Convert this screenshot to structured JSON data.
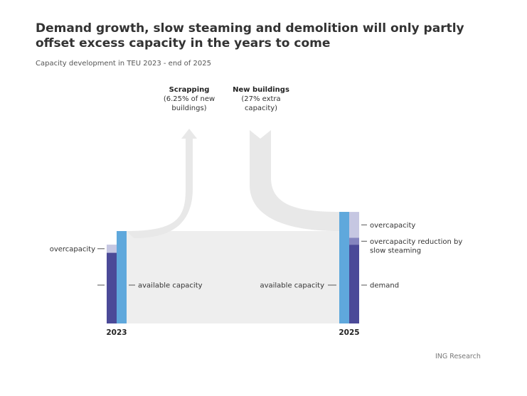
{
  "title": "Demand growth, slow steaming and demolition will only partly offset excess capacity in the years to come",
  "subtitle": "Capacity development in TEU 2023 - end of 2025",
  "source": "ING Research",
  "colors": {
    "demand": "#4b4a98",
    "overcapacity": "#c6c7e2",
    "slow_steaming": "#8585bf",
    "available_capacity": "#5fa8dc",
    "flow": "#eeeeee",
    "arrow": "#e8e8e8"
  },
  "chart_data": {
    "type": "sankey",
    "title": "Demand growth, slow steaming and demolition will only partly offset excess capacity in the years to come",
    "subtitle": "Capacity development in TEU 2023 - end of 2025",
    "columns": [
      "2023",
      "2025"
    ],
    "index_base": "available capacity 2023 = 100",
    "y_scale": [
      0,
      100
    ],
    "bars": {
      "2023": {
        "available_capacity": 100,
        "demand": 76.5,
        "overcapacity": 8.8
      },
      "2025": {
        "available_capacity": 120.75,
        "demand": 85.3,
        "overcapacity_reduction_by_slow_steaming": 7.4,
        "overcapacity": 28.0
      }
    },
    "flows": {
      "new_buildings": 27,
      "scrapping": 6.25
    },
    "flow_labels": {
      "scrapping": [
        "Scrapping",
        "(6.25% of new",
        "buildings)"
      ],
      "new_buildings": [
        "New buildings",
        "(27% extra",
        "capacity)"
      ]
    },
    "labels": {
      "year_2023": "2023",
      "year_2025": "2025",
      "overcapacity_2023": "overcapacity",
      "available_capacity_2023": "available capacity",
      "available_capacity_2025": "available capacity",
      "overcapacity_2025": "overcapacity",
      "slow_steaming_line1": "overcapacity reduction by",
      "slow_steaming_line2": "slow steaming",
      "demand_2025": "demand"
    }
  }
}
